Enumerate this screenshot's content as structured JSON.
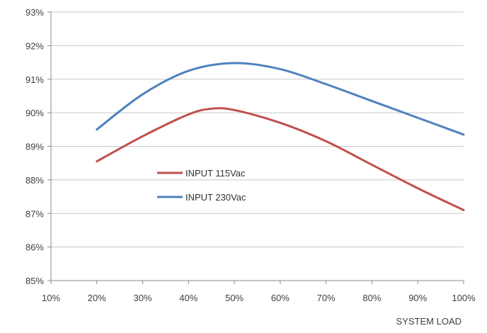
{
  "chart_data": {
    "type": "line",
    "xlabel": "SYSTEM LOAD",
    "ylabel": "",
    "x_ticks": [
      "10%",
      "20%",
      "30%",
      "40%",
      "50%",
      "60%",
      "70%",
      "80%",
      "90%",
      "100%"
    ],
    "y_ticks": [
      "85%",
      "86%",
      "87%",
      "88%",
      "89%",
      "90%",
      "91%",
      "92%",
      "93%"
    ],
    "xlim": [
      10,
      100
    ],
    "ylim": [
      85,
      93
    ],
    "grid": "horizontal",
    "legend_position": "center-left",
    "series": [
      {
        "name": "INPUT 115Vac",
        "color": "#c0504d",
        "x": [
          20,
          30,
          40,
          45,
          50,
          60,
          70,
          80,
          90,
          100
        ],
        "y": [
          88.55,
          89.3,
          89.95,
          90.12,
          90.08,
          89.7,
          89.15,
          88.45,
          87.75,
          87.1
        ]
      },
      {
        "name": "INPUT 230Vac",
        "color": "#4f81bd",
        "x": [
          20,
          30,
          40,
          50,
          60,
          70,
          80,
          90,
          100
        ],
        "y": [
          89.5,
          90.55,
          91.25,
          91.48,
          91.3,
          90.85,
          90.35,
          89.85,
          89.35
        ]
      }
    ]
  }
}
